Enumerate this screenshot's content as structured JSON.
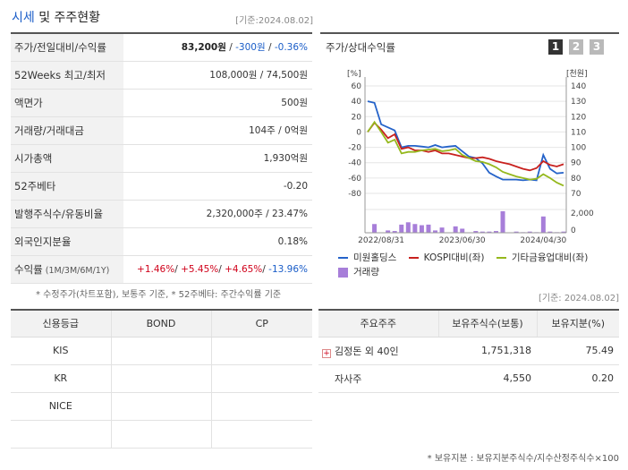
{
  "header": {
    "title_blue": "시세",
    "title_rest": " 및 주주현황",
    "date": "[기준:2024.08.02]"
  },
  "quote": {
    "price_label": "주가/전일대비/수익률",
    "price": "83,200원",
    "change": "-300원",
    "change_rate": "-0.36%",
    "sep": " / ",
    "w52_label": "52Weeks 최고/최저",
    "w52_value": "108,000원 / 74,500원",
    "par_label": "액면가",
    "par_value": "500원",
    "volume_label": "거래량/거래대금",
    "volume_value": "104주 / 0억원",
    "mcap_label": "시가총액",
    "mcap_value": "1,930억원",
    "beta_label": "52주베타",
    "beta_value": "-0.20",
    "shares_label": "발행주식수/유동비율",
    "shares_value": "2,320,000주 / 23.47%",
    "foreign_label": "외국인지분율",
    "foreign_value": "0.18%",
    "return_label": "수익률",
    "return_sub": " (1M/3M/6M/1Y)",
    "return_1m": "+1.46%",
    "return_3m": "+5.45%",
    "return_6m": "+4.65%",
    "return_1y": "-13.96%",
    "note": "* 수정주가(차트포함), 보통주 기준, * 52주베타: 주간수익률 기준"
  },
  "chart_panel": {
    "title": "주가/상대수익률",
    "pages": [
      "1",
      "2",
      "3"
    ],
    "left_unit": "[%]",
    "right_unit": "[천원]",
    "vol_tick": "2,000",
    "vol_zero": "0"
  },
  "chart_data": {
    "type": "line",
    "x_ticks": [
      "2022/08/31",
      "2023/06/30",
      "2024/04/30"
    ],
    "left_axis": {
      "ylim": [
        -80,
        60
      ],
      "ticks": [
        60,
        40,
        20,
        0,
        -20,
        -40,
        -60,
        -80
      ]
    },
    "right_axis": {
      "ylim": [
        70,
        140
      ],
      "ticks": [
        140,
        130,
        120,
        110,
        100,
        90,
        80,
        70
      ]
    },
    "series": [
      {
        "name": "미원홀딩스",
        "axis": "left",
        "color": "#2563c9",
        "values": [
          40,
          38,
          10,
          6,
          2,
          -20,
          -18,
          -18,
          -19,
          -20,
          -17,
          -20,
          -19,
          -18,
          -25,
          -32,
          -34,
          -41,
          -53,
          -58,
          -62,
          -62,
          -62,
          -63,
          -62,
          -63,
          -30,
          -48,
          -54,
          -53
        ]
      },
      {
        "name": "KOSPI대비(좌)",
        "axis": "left",
        "color": "#c8211e",
        "values": [
          0,
          12,
          3,
          -8,
          -3,
          -22,
          -20,
          -24,
          -24,
          -26,
          -24,
          -28,
          -28,
          -30,
          -32,
          -34,
          -34,
          -33,
          -35,
          -38,
          -40,
          -42,
          -45,
          -48,
          -50,
          -47,
          -38,
          -43,
          -45,
          -42
        ]
      },
      {
        "name": "기타금융업대비(좌)",
        "axis": "left",
        "color": "#95b81d",
        "values": [
          0,
          13,
          0,
          -14,
          -10,
          -28,
          -26,
          -26,
          -24,
          -23,
          -22,
          -25,
          -24,
          -22,
          -30,
          -34,
          -38,
          -39,
          -42,
          -46,
          -52,
          -55,
          -58,
          -60,
          -62,
          -61,
          -55,
          -60,
          -66,
          -70
        ]
      }
    ],
    "volume": {
      "name": "거래량",
      "color": "#a77ed9",
      "ylim": [
        0,
        2000
      ],
      "values": [
        0,
        750,
        0,
        200,
        150,
        700,
        900,
        750,
        650,
        700,
        200,
        450,
        0,
        550,
        350,
        0,
        150,
        100,
        100,
        150,
        1850,
        0,
        100,
        50,
        100,
        50,
        1400,
        100,
        50,
        100
      ]
    }
  },
  "legend": [
    {
      "label": "미원홀딩스",
      "color": "#2563c9"
    },
    {
      "label": "KOSPI대비(좌)",
      "color": "#c8211e"
    },
    {
      "label": "기타금융업대비(좌)",
      "color": "#95b81d"
    },
    {
      "label": "거래량",
      "color": "#a77ed9"
    }
  ],
  "date2": "[기준: 2024.08.02]",
  "credit": {
    "headers": [
      "신용등급",
      "BOND",
      "CP"
    ],
    "rows": [
      {
        "agency": "KIS",
        "bond": "",
        "cp": ""
      },
      {
        "agency": "KR",
        "bond": "",
        "cp": ""
      },
      {
        "agency": "NICE",
        "bond": "",
        "cp": ""
      },
      {
        "agency": "",
        "bond": "",
        "cp": ""
      }
    ]
  },
  "shareholders": {
    "headers": [
      "주요주주",
      "보유주식수(보통)",
      "보유지분(%)"
    ],
    "rows": [
      {
        "name": "김정돈 외 40인",
        "shares": "1,751,318",
        "pct": "75.49",
        "expand": "+"
      },
      {
        "name": "자사주",
        "shares": "4,550",
        "pct": "0.20",
        "expand": ""
      }
    ],
    "note": "* 보유지분 : 보유지분주식수/지수산정주식수×100"
  }
}
